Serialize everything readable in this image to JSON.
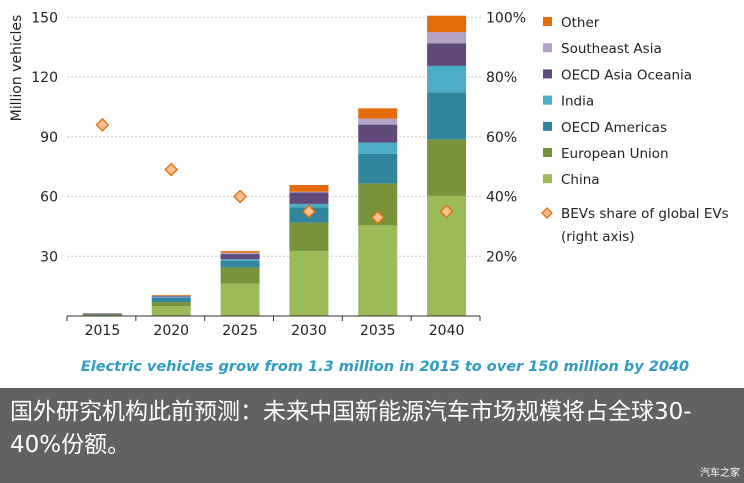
{
  "chart_data": {
    "type": "bar",
    "stacked": true,
    "categories": [
      "2015",
      "2020",
      "2025",
      "2030",
      "2035",
      "2040"
    ],
    "ylabel": "Million vehicles",
    "ylim": [
      0,
      150
    ],
    "yticks": [
      30,
      60,
      90,
      120,
      150
    ],
    "y2lim": [
      0,
      100
    ],
    "y2ticks": [
      "20%",
      "40%",
      "60%",
      "80%",
      "100%"
    ],
    "grid": true,
    "legend_position": "right",
    "series": [
      {
        "name": "China",
        "color": "#9bbb59",
        "values": [
          0.5,
          5,
          16.2,
          32.6,
          45.5,
          60.3
        ]
      },
      {
        "name": "European Union",
        "color": "#77933c",
        "values": [
          0.3,
          2,
          8.2,
          14.3,
          21.1,
          28.4
        ]
      },
      {
        "name": "OECD Americas",
        "color": "#31859c",
        "values": [
          0.4,
          2.2,
          3.4,
          7.7,
          14.8,
          23.6
        ]
      },
      {
        "name": "India",
        "color": "#4bacc6",
        "values": [
          0,
          0.3,
          0.7,
          1.7,
          5.7,
          13.3
        ]
      },
      {
        "name": "OECD Asia Oceania",
        "color": "#604a7b",
        "values": [
          0.1,
          0.5,
          2.6,
          5.7,
          9,
          11.4
        ]
      },
      {
        "name": "Southeast Asia",
        "color": "#b3a2c7",
        "values": [
          0,
          0.2,
          0.7,
          0.4,
          3,
          5.5
        ]
      },
      {
        "name": "Other",
        "color": "#e46c0a",
        "values": [
          0,
          0.3,
          0.8,
          3.4,
          5.2,
          8.3
        ]
      }
    ],
    "line_series": {
      "name": "BEVs share of global EVs",
      "name_line2": "(right axis)",
      "axis": "right",
      "unit": "%",
      "marker": "diamond",
      "color": "#fac090",
      "edge_color": "#e46c0a",
      "values": [
        64,
        49,
        40,
        35,
        33,
        35
      ]
    },
    "subtitle": "Electric vehicles grow from 1.3 million in 2015 to over 150 million by 2040"
  },
  "caption": "国外研究机构此前预测：未来中国新能源汽车市场规模将占全球30-40%份额。",
  "watermark": "汽车之家"
}
